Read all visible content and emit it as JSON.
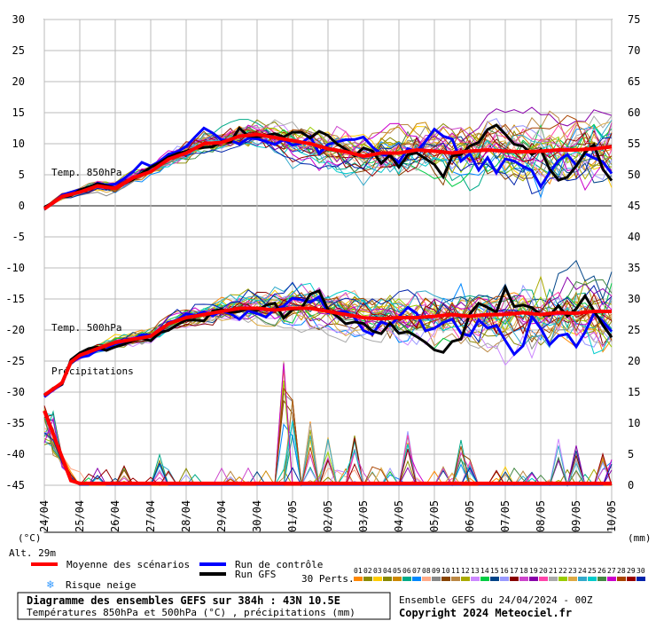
{
  "chart_data": {
    "type": "line",
    "left_axis": {
      "ticks": [
        "30",
        "25",
        "20",
        "15",
        "10",
        "5",
        "0",
        "-5",
        "-10",
        "-15",
        "-20",
        "-25",
        "-30",
        "-35",
        "-40",
        "-45"
      ],
      "unit": "(°C)"
    },
    "right_axis": {
      "ticks": [
        "75",
        "70",
        "65",
        "60",
        "55",
        "50",
        "45",
        "40",
        "35",
        "30",
        "25",
        "20",
        "15",
        "10",
        "5",
        "0"
      ],
      "unit": "(mm)"
    },
    "x_ticks": [
      "24/04",
      "25/04",
      "26/04",
      "27/04",
      "28/04",
      "29/04",
      "30/04",
      "01/05",
      "02/05",
      "03/05",
      "04/05",
      "05/05",
      "06/05",
      "07/05",
      "08/05",
      "09/05",
      "10/05"
    ],
    "x_range": [
      "24/04 00Z",
      "10/05 00Z"
    ],
    "annotations": {
      "t850": "Temp. 850hPa",
      "t500": "Temp. 500hPa",
      "precip": "Précipitations",
      "alt": "Alt. 29m"
    },
    "series": [
      {
        "name": "Moyenne des scénarios",
        "role": "mean",
        "color": "#ff0000"
      },
      {
        "name": "Run de contrôle",
        "role": "control",
        "color": "#0000ff"
      },
      {
        "name": "Run GFS",
        "role": "gfs",
        "color": "#000000"
      }
    ],
    "t850_mean_keypoints": [
      [
        0,
        -0.5
      ],
      [
        0.5,
        1.5
      ],
      [
        1,
        2.2
      ],
      [
        1.5,
        3.2
      ],
      [
        2,
        2.8
      ],
      [
        2.5,
        4.5
      ],
      [
        3,
        5.5
      ],
      [
        3.5,
        7.5
      ],
      [
        4,
        8.5
      ],
      [
        4.5,
        10
      ],
      [
        5,
        10.2
      ],
      [
        5.5,
        11.2
      ],
      [
        6,
        11.5
      ],
      [
        6.5,
        11
      ],
      [
        7,
        10.5
      ],
      [
        7.5,
        10
      ],
      [
        8,
        9.2
      ],
      [
        8.5,
        8.7
      ],
      [
        9,
        8
      ],
      [
        9.5,
        8.5
      ],
      [
        10,
        8.5
      ],
      [
        10.5,
        9
      ],
      [
        11,
        8.8
      ],
      [
        11.5,
        8.5
      ],
      [
        12,
        8.8
      ],
      [
        12.5,
        9
      ],
      [
        13,
        8.8
      ],
      [
        13.5,
        8.7
      ],
      [
        14,
        8.8
      ],
      [
        14.5,
        9
      ],
      [
        15,
        9
      ],
      [
        15.5,
        9.2
      ],
      [
        16,
        9.5
      ]
    ],
    "t500_mean_keypoints": [
      [
        0,
        -30.5
      ],
      [
        0.5,
        -28.5
      ],
      [
        0.8,
        -24.5
      ],
      [
        1.5,
        -23
      ],
      [
        2,
        -22
      ],
      [
        2.5,
        -21.5
      ],
      [
        3,
        -21
      ],
      [
        3.5,
        -19
      ],
      [
        4,
        -18
      ],
      [
        4.5,
        -17.5
      ],
      [
        5,
        -17
      ],
      [
        5.5,
        -16.5
      ],
      [
        6,
        -16.5
      ],
      [
        6.5,
        -16.8
      ],
      [
        7,
        -16.5
      ],
      [
        7.5,
        -16.5
      ],
      [
        8,
        -17
      ],
      [
        8.5,
        -17.5
      ],
      [
        9,
        -18
      ],
      [
        9.5,
        -18.2
      ],
      [
        10,
        -18
      ],
      [
        10.5,
        -18
      ],
      [
        11,
        -17.8
      ],
      [
        11.5,
        -17.5
      ],
      [
        12,
        -17.8
      ],
      [
        12.5,
        -17.5
      ],
      [
        13,
        -17.5
      ],
      [
        13.5,
        -17.2
      ],
      [
        14,
        -17.5
      ],
      [
        14.5,
        -17.2
      ],
      [
        15,
        -17.3
      ],
      [
        15.5,
        -17
      ],
      [
        16,
        -17
      ]
    ],
    "precip_peaks_mm": [
      [
        0.3,
        12
      ],
      [
        2.3,
        4
      ],
      [
        3.2,
        5
      ],
      [
        6.8,
        22
      ],
      [
        7.1,
        14
      ],
      [
        7.5,
        12
      ],
      [
        8.1,
        10
      ],
      [
        8.8,
        8
      ],
      [
        10.3,
        9
      ],
      [
        11.7,
        8
      ],
      [
        12.1,
        6
      ],
      [
        14.6,
        8
      ],
      [
        14.9,
        8
      ],
      [
        15.7,
        6
      ],
      [
        15.9,
        5
      ]
    ],
    "neige_legend": "Risque neige",
    "perts_label": "30 Perts.",
    "pert_numbers": [
      "01",
      "02",
      "03",
      "04",
      "05",
      "06",
      "07",
      "08",
      "09",
      "10",
      "11",
      "12",
      "13",
      "14",
      "15",
      "16",
      "17",
      "18",
      "19",
      "20",
      "21",
      "22",
      "23",
      "24",
      "25",
      "26",
      "27",
      "28",
      "29",
      "30"
    ],
    "pert_colors": [
      "#ff8800",
      "#8b8b00",
      "#ffcc00",
      "#888800",
      "#cc8800",
      "#00aa88",
      "#0088ff",
      "#ffaa88",
      "#888888",
      "#884400",
      "#bb8844",
      "#aaaa00",
      "#cc88ff",
      "#00cc44",
      "#004488",
      "#9999ff",
      "#880000",
      "#cc44cc",
      "#8800aa",
      "#ff44aa",
      "#aaaaaa",
      "#99cc00",
      "#ddaa44",
      "#33aacc",
      "#00cccc",
      "#448844",
      "#cc00cc",
      "#aa4400",
      "#990000",
      "#0022aa"
    ],
    "colors": {
      "grid": "#bbbbbb",
      "axis": "#000000",
      "mean": "#ff0000",
      "control": "#0000ff",
      "gfs": "#000000"
    }
  },
  "footer": {
    "title": "Diagramme des ensembles GEFS sur 384h : 43N 10.5E",
    "subtitle": "Températures 850hPa et 500hPa (°C) , précipitations (mm)",
    "run": "Ensemble GEFS du 24/04/2024 - 00Z",
    "copyright": "Copyright 2024 Meteociel.fr"
  }
}
